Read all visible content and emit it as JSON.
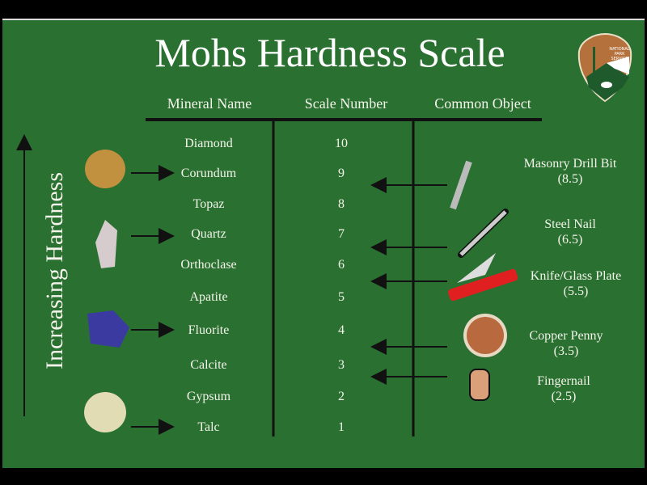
{
  "title": "Mohs Hardness Scale",
  "logo_text": "NATIONAL PARK SERVICE",
  "axis_label": "Increasing Hardness",
  "headers": [
    "Mineral Name",
    "Scale Number",
    "Common Object"
  ],
  "minerals": [
    {
      "name": "Diamond",
      "scale": "10"
    },
    {
      "name": "Corundum",
      "scale": "9"
    },
    {
      "name": "Topaz",
      "scale": "8"
    },
    {
      "name": "Quartz",
      "scale": "7"
    },
    {
      "name": "Orthoclase",
      "scale": "6"
    },
    {
      "name": "Apatite",
      "scale": "5"
    },
    {
      "name": "Fluorite",
      "scale": "4"
    },
    {
      "name": "Calcite",
      "scale": "3"
    },
    {
      "name": "Gypsum",
      "scale": "2"
    },
    {
      "name": "Talc",
      "scale": "1"
    }
  ],
  "objects": [
    {
      "name": "Masonry Drill Bit",
      "value": "(8.5)",
      "icon": "drill-bit-icon"
    },
    {
      "name": "Steel Nail",
      "value": "(6.5)",
      "icon": "nail-icon"
    },
    {
      "name": "Knife/Glass Plate",
      "value": "(5.5)",
      "icon": "pocket-knife-icon"
    },
    {
      "name": "Copper Penny",
      "value": "(3.5)",
      "icon": "penny-icon"
    },
    {
      "name": "Fingernail",
      "value": "(2.5)",
      "icon": "fingernail-icon"
    }
  ],
  "colors": {
    "background": "#2a7030",
    "text": "#f4f4ec"
  }
}
